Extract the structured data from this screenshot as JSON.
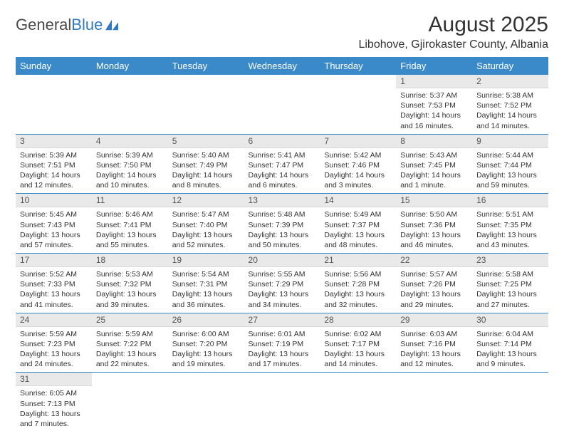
{
  "logo": {
    "text1": "General",
    "text2": "Blue",
    "text_color": "#4a4a4a",
    "accent_color": "#2f7ac0"
  },
  "title": "August 2025",
  "location": "Libohove, Gjirokaster County, Albania",
  "style": {
    "header_bg": "#3a8ac9",
    "header_fg": "#ffffff",
    "daynum_bg": "#e9e9e9",
    "cell_border": "#3a8ac9"
  },
  "day_headers": [
    "Sunday",
    "Monday",
    "Tuesday",
    "Wednesday",
    "Thursday",
    "Friday",
    "Saturday"
  ],
  "weeks": [
    [
      null,
      null,
      null,
      null,
      null,
      {
        "n": "1",
        "sunrise": "5:37 AM",
        "sunset": "7:53 PM",
        "daylight": "14 hours and 16 minutes."
      },
      {
        "n": "2",
        "sunrise": "5:38 AM",
        "sunset": "7:52 PM",
        "daylight": "14 hours and 14 minutes."
      }
    ],
    [
      {
        "n": "3",
        "sunrise": "5:39 AM",
        "sunset": "7:51 PM",
        "daylight": "14 hours and 12 minutes."
      },
      {
        "n": "4",
        "sunrise": "5:39 AM",
        "sunset": "7:50 PM",
        "daylight": "14 hours and 10 minutes."
      },
      {
        "n": "5",
        "sunrise": "5:40 AM",
        "sunset": "7:49 PM",
        "daylight": "14 hours and 8 minutes."
      },
      {
        "n": "6",
        "sunrise": "5:41 AM",
        "sunset": "7:47 PM",
        "daylight": "14 hours and 6 minutes."
      },
      {
        "n": "7",
        "sunrise": "5:42 AM",
        "sunset": "7:46 PM",
        "daylight": "14 hours and 3 minutes."
      },
      {
        "n": "8",
        "sunrise": "5:43 AM",
        "sunset": "7:45 PM",
        "daylight": "14 hours and 1 minute."
      },
      {
        "n": "9",
        "sunrise": "5:44 AM",
        "sunset": "7:44 PM",
        "daylight": "13 hours and 59 minutes."
      }
    ],
    [
      {
        "n": "10",
        "sunrise": "5:45 AM",
        "sunset": "7:43 PM",
        "daylight": "13 hours and 57 minutes."
      },
      {
        "n": "11",
        "sunrise": "5:46 AM",
        "sunset": "7:41 PM",
        "daylight": "13 hours and 55 minutes."
      },
      {
        "n": "12",
        "sunrise": "5:47 AM",
        "sunset": "7:40 PM",
        "daylight": "13 hours and 52 minutes."
      },
      {
        "n": "13",
        "sunrise": "5:48 AM",
        "sunset": "7:39 PM",
        "daylight": "13 hours and 50 minutes."
      },
      {
        "n": "14",
        "sunrise": "5:49 AM",
        "sunset": "7:37 PM",
        "daylight": "13 hours and 48 minutes."
      },
      {
        "n": "15",
        "sunrise": "5:50 AM",
        "sunset": "7:36 PM",
        "daylight": "13 hours and 46 minutes."
      },
      {
        "n": "16",
        "sunrise": "5:51 AM",
        "sunset": "7:35 PM",
        "daylight": "13 hours and 43 minutes."
      }
    ],
    [
      {
        "n": "17",
        "sunrise": "5:52 AM",
        "sunset": "7:33 PM",
        "daylight": "13 hours and 41 minutes."
      },
      {
        "n": "18",
        "sunrise": "5:53 AM",
        "sunset": "7:32 PM",
        "daylight": "13 hours and 39 minutes."
      },
      {
        "n": "19",
        "sunrise": "5:54 AM",
        "sunset": "7:31 PM",
        "daylight": "13 hours and 36 minutes."
      },
      {
        "n": "20",
        "sunrise": "5:55 AM",
        "sunset": "7:29 PM",
        "daylight": "13 hours and 34 minutes."
      },
      {
        "n": "21",
        "sunrise": "5:56 AM",
        "sunset": "7:28 PM",
        "daylight": "13 hours and 32 minutes."
      },
      {
        "n": "22",
        "sunrise": "5:57 AM",
        "sunset": "7:26 PM",
        "daylight": "13 hours and 29 minutes."
      },
      {
        "n": "23",
        "sunrise": "5:58 AM",
        "sunset": "7:25 PM",
        "daylight": "13 hours and 27 minutes."
      }
    ],
    [
      {
        "n": "24",
        "sunrise": "5:59 AM",
        "sunset": "7:23 PM",
        "daylight": "13 hours and 24 minutes."
      },
      {
        "n": "25",
        "sunrise": "5:59 AM",
        "sunset": "7:22 PM",
        "daylight": "13 hours and 22 minutes."
      },
      {
        "n": "26",
        "sunrise": "6:00 AM",
        "sunset": "7:20 PM",
        "daylight": "13 hours and 19 minutes."
      },
      {
        "n": "27",
        "sunrise": "6:01 AM",
        "sunset": "7:19 PM",
        "daylight": "13 hours and 17 minutes."
      },
      {
        "n": "28",
        "sunrise": "6:02 AM",
        "sunset": "7:17 PM",
        "daylight": "13 hours and 14 minutes."
      },
      {
        "n": "29",
        "sunrise": "6:03 AM",
        "sunset": "7:16 PM",
        "daylight": "13 hours and 12 minutes."
      },
      {
        "n": "30",
        "sunrise": "6:04 AM",
        "sunset": "7:14 PM",
        "daylight": "13 hours and 9 minutes."
      }
    ],
    [
      {
        "n": "31",
        "sunrise": "6:05 AM",
        "sunset": "7:13 PM",
        "daylight": "13 hours and 7 minutes."
      },
      null,
      null,
      null,
      null,
      null,
      null
    ]
  ]
}
